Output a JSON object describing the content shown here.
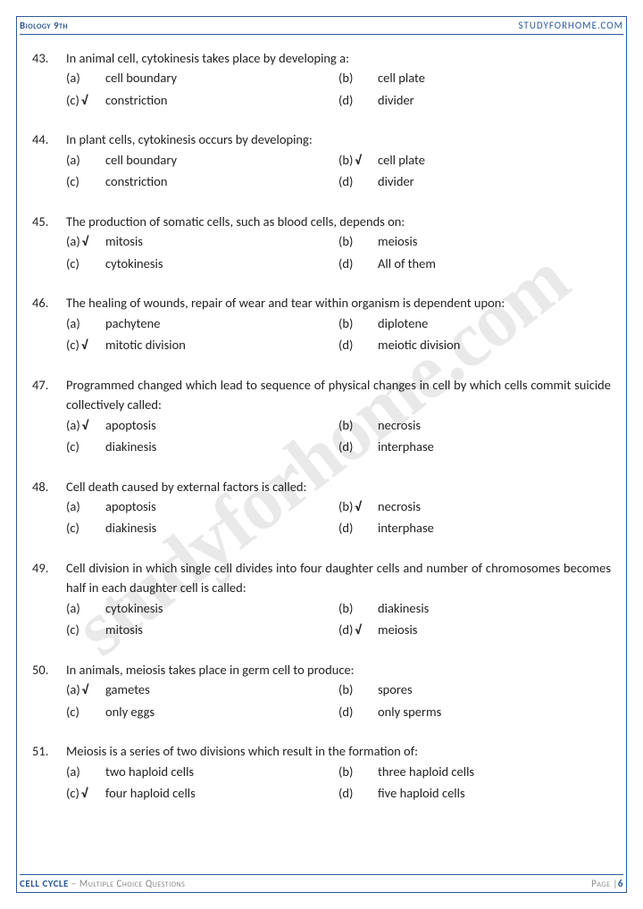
{
  "header": {
    "left": "Biology 9th",
    "right": "STUDYFORHOME.COM"
  },
  "watermark": "studyforhome.com",
  "footer": {
    "topic": "CELL CYCLE",
    "subtitle": " – Multiple Choice Questions",
    "page_label": "Page |",
    "page_num": "6"
  },
  "checkmark": "√",
  "questions": [
    {
      "num": "43.",
      "text": "In animal cell, cytokinesis takes place by developing a:",
      "opts": [
        {
          "l": "(a)",
          "t": "cell boundary",
          "c": false
        },
        {
          "l": "(b)",
          "t": "cell plate",
          "c": false
        },
        {
          "l": "(c)",
          "t": "constriction",
          "c": true
        },
        {
          "l": "(d)",
          "t": "divider",
          "c": false
        }
      ]
    },
    {
      "num": "44.",
      "text": "In plant cells, cytokinesis occurs by developing:",
      "opts": [
        {
          "l": "(a)",
          "t": "cell boundary",
          "c": false
        },
        {
          "l": "(b)",
          "t": "cell plate",
          "c": true
        },
        {
          "l": "(c)",
          "t": "constriction",
          "c": false
        },
        {
          "l": "(d)",
          "t": "divider",
          "c": false
        }
      ]
    },
    {
      "num": "45.",
      "text": "The production of somatic cells, such as blood cells, depends on:",
      "opts": [
        {
          "l": "(a)",
          "t": "mitosis",
          "c": true
        },
        {
          "l": "(b)",
          "t": "meiosis",
          "c": false
        },
        {
          "l": "(c)",
          "t": "cytokinesis",
          "c": false
        },
        {
          "l": "(d)",
          "t": "All of them",
          "c": false
        }
      ]
    },
    {
      "num": "46.",
      "text": "The healing of wounds, repair of wear and tear within organism is dependent upon:",
      "opts": [
        {
          "l": "(a)",
          "t": "pachytene",
          "c": false
        },
        {
          "l": "(b)",
          "t": "diplotene",
          "c": false
        },
        {
          "l": "(c)",
          "t": "mitotic division",
          "c": true
        },
        {
          "l": "(d)",
          "t": "meiotic division",
          "c": false
        }
      ]
    },
    {
      "num": "47.",
      "text": "Programmed changed which lead to sequence of physical changes in cell by which cells commit suicide collectively called:",
      "opts": [
        {
          "l": "(a)",
          "t": "apoptosis",
          "c": true
        },
        {
          "l": "(b)",
          "t": "necrosis",
          "c": false
        },
        {
          "l": "(c)",
          "t": "diakinesis",
          "c": false
        },
        {
          "l": "(d)",
          "t": "interphase",
          "c": false
        }
      ]
    },
    {
      "num": "48.",
      "text": "Cell death caused by external factors is called:",
      "opts": [
        {
          "l": "(a)",
          "t": "apoptosis",
          "c": false
        },
        {
          "l": "(b)",
          "t": "necrosis",
          "c": true
        },
        {
          "l": "(c)",
          "t": "diakinesis",
          "c": false
        },
        {
          "l": "(d)",
          "t": "interphase",
          "c": false
        }
      ]
    },
    {
      "num": "49.",
      "text": "Cell division in which single cell divides into four daughter cells and number of chromosomes becomes half in each daughter cell is called:",
      "opts": [
        {
          "l": "(a)",
          "t": "cytokinesis",
          "c": false
        },
        {
          "l": "(b)",
          "t": "diakinesis",
          "c": false
        },
        {
          "l": "(c)",
          "t": "mitosis",
          "c": false
        },
        {
          "l": "(d)",
          "t": "meiosis",
          "c": true
        }
      ]
    },
    {
      "num": "50.",
      "text": "In animals, meiosis takes place in germ cell to produce:",
      "opts": [
        {
          "l": "(a)",
          "t": "gametes",
          "c": true
        },
        {
          "l": "(b)",
          "t": "spores",
          "c": false
        },
        {
          "l": "(c)",
          "t": "only eggs",
          "c": false
        },
        {
          "l": "(d)",
          "t": "only sperms",
          "c": false
        }
      ]
    },
    {
      "num": "51.",
      "text": "Meiosis is a series of two divisions which result in the formation of:",
      "opts": [
        {
          "l": "(a)",
          "t": "two haploid cells",
          "c": false
        },
        {
          "l": "(b)",
          "t": "three haploid cells",
          "c": false
        },
        {
          "l": "(c)",
          "t": "four haploid cells",
          "c": true
        },
        {
          "l": "(d)",
          "t": "five haploid cells",
          "c": false
        }
      ]
    }
  ]
}
